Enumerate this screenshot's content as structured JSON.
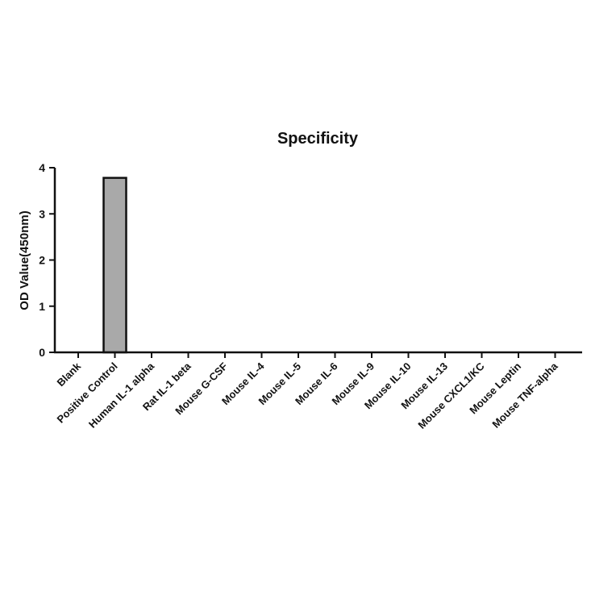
{
  "chart_data": {
    "type": "bar",
    "title": "Specificity",
    "xlabel": "",
    "ylabel": "OD Value(450nm)",
    "ylim": [
      0,
      4
    ],
    "yticks": [
      0,
      1,
      2,
      3,
      4
    ],
    "grid": false,
    "categories": [
      "Blank",
      "Positive Control",
      "Human IL-1 alpha",
      "Rat IL-1 beta",
      "Mouse G-CSF",
      "Mouse IL-4",
      "Mouse IL-5",
      "Mouse IL-6",
      "Mouse IL-9",
      "Mouse IL-10",
      "Mouse IL-13",
      "Mouse CXCL1/KC",
      "Mouse Leptin",
      "Mouse TNF-alpha"
    ],
    "values": [
      0,
      3.78,
      0,
      0,
      0,
      0,
      0,
      0,
      0,
      0,
      0,
      0,
      0,
      0
    ],
    "bar_color": "#a9a9a9",
    "bar_edge_color": "#111111"
  }
}
